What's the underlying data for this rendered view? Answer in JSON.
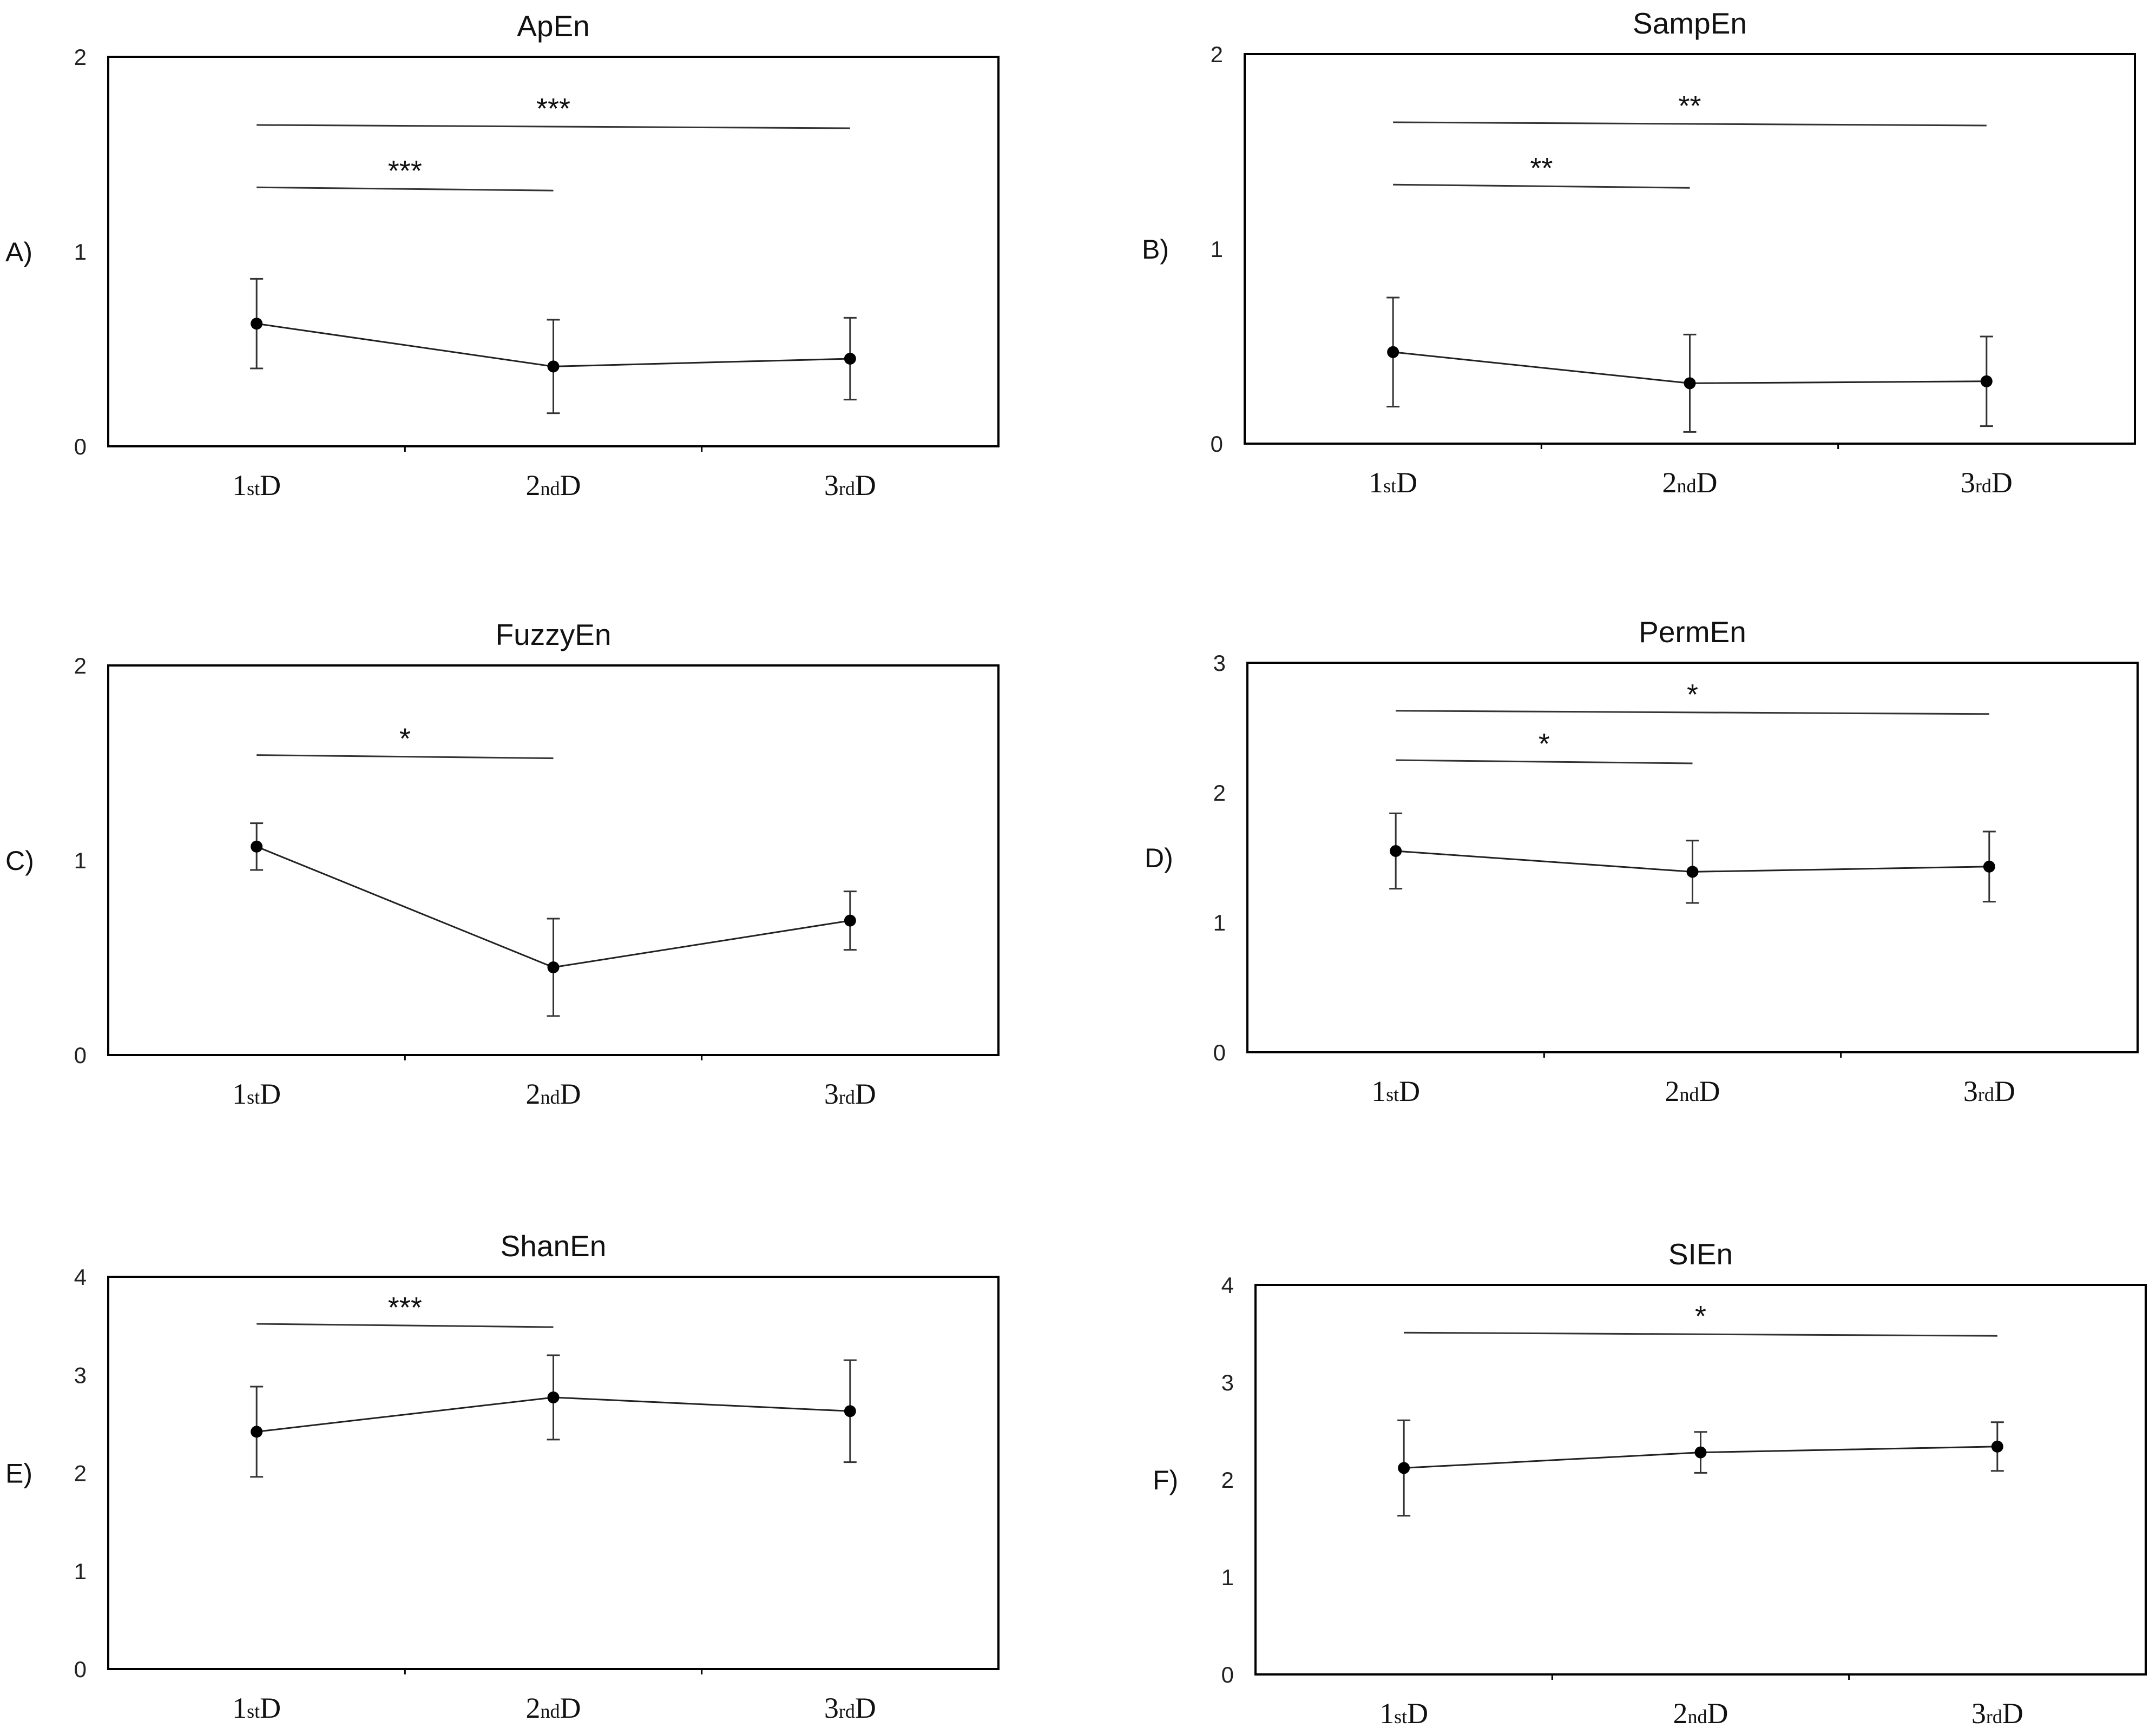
{
  "chart_data": [
    {
      "id": "A",
      "type": "line",
      "panel_label": "A)",
      "title": "ApEn",
      "categories": [
        {
          "num": "1",
          "sup": "st",
          "letter": "D"
        },
        {
          "num": "2",
          "sup": "nd",
          "letter": "D"
        },
        {
          "num": "3",
          "sup": "rd",
          "letter": "D"
        }
      ],
      "values": [
        0.63,
        0.41,
        0.45
      ],
      "error": [
        0.23,
        0.24,
        0.21
      ],
      "ylim": [
        0,
        2
      ],
      "yticks": [
        "0",
        "1",
        "2"
      ],
      "significance": [
        {
          "from": 0,
          "to": 1,
          "y": 1.33,
          "label": "***"
        },
        {
          "from": 0,
          "to": 2,
          "y": 1.65,
          "label": "***"
        }
      ]
    },
    {
      "id": "B",
      "type": "line",
      "panel_label": "B)",
      "title": "SampEn",
      "categories": [
        {
          "num": "1",
          "sup": "st",
          "letter": "D"
        },
        {
          "num": "2",
          "sup": "nd",
          "letter": "D"
        },
        {
          "num": "3",
          "sup": "rd",
          "letter": "D"
        }
      ],
      "values": [
        0.47,
        0.31,
        0.32
      ],
      "error": [
        0.28,
        0.25,
        0.23
      ],
      "ylim": [
        0,
        2
      ],
      "yticks": [
        "0",
        "1",
        "2"
      ],
      "significance": [
        {
          "from": 0,
          "to": 1,
          "y": 1.33,
          "label": "**"
        },
        {
          "from": 0,
          "to": 2,
          "y": 1.65,
          "label": "**"
        }
      ]
    },
    {
      "id": "C",
      "type": "line",
      "panel_label": "C)",
      "title": "FuzzyEn",
      "categories": [
        {
          "num": "1",
          "sup": "st",
          "letter": "D"
        },
        {
          "num": "2",
          "sup": "nd",
          "letter": "D"
        },
        {
          "num": "3",
          "sup": "rd",
          "letter": "D"
        }
      ],
      "values": [
        1.07,
        0.45,
        0.69
      ],
      "error": [
        0.12,
        0.25,
        0.15
      ],
      "ylim": [
        0,
        2
      ],
      "yticks": [
        "0",
        "1",
        "2"
      ],
      "significance": [
        {
          "from": 0,
          "to": 1,
          "y": 1.54,
          "label": "*"
        }
      ]
    },
    {
      "id": "D",
      "type": "line",
      "panel_label": "D)",
      "title": "PermEn",
      "categories": [
        {
          "num": "1",
          "sup": "st",
          "letter": "D"
        },
        {
          "num": "2",
          "sup": "nd",
          "letter": "D"
        },
        {
          "num": "3",
          "sup": "rd",
          "letter": "D"
        }
      ],
      "values": [
        1.55,
        1.39,
        1.43
      ],
      "error": [
        0.29,
        0.24,
        0.27
      ],
      "ylim": [
        0,
        3
      ],
      "yticks": [
        "0",
        "1",
        "2",
        "3"
      ],
      "significance": [
        {
          "from": 0,
          "to": 1,
          "y": 2.25,
          "label": "*"
        },
        {
          "from": 0,
          "to": 2,
          "y": 2.63,
          "label": "*"
        }
      ]
    },
    {
      "id": "E",
      "type": "line",
      "panel_label": "E)",
      "title": "ShanEn",
      "categories": [
        {
          "num": "1",
          "sup": "st",
          "letter": "D"
        },
        {
          "num": "2",
          "sup": "nd",
          "letter": "D"
        },
        {
          "num": "3",
          "sup": "rd",
          "letter": "D"
        }
      ],
      "values": [
        2.42,
        2.77,
        2.63
      ],
      "error": [
        0.46,
        0.43,
        0.52
      ],
      "ylim": [
        0,
        4
      ],
      "yticks": [
        "0",
        "1",
        "2",
        "3",
        "4"
      ],
      "significance": [
        {
          "from": 0,
          "to": 1,
          "y": 3.52,
          "label": "***"
        }
      ]
    },
    {
      "id": "F",
      "type": "line",
      "panel_label": "F)",
      "title": "SIEn",
      "categories": [
        {
          "num": "1",
          "sup": "st",
          "letter": "D"
        },
        {
          "num": "2",
          "sup": "nd",
          "letter": "D"
        },
        {
          "num": "3",
          "sup": "rd",
          "letter": "D"
        }
      ],
      "values": [
        2.12,
        2.28,
        2.34
      ],
      "error": [
        0.49,
        0.21,
        0.25
      ],
      "ylim": [
        0,
        4
      ],
      "yticks": [
        "0",
        "1",
        "2",
        "3",
        "4"
      ],
      "significance": [
        {
          "from": 0,
          "to": 2,
          "y": 3.51,
          "label": "*"
        }
      ]
    }
  ]
}
